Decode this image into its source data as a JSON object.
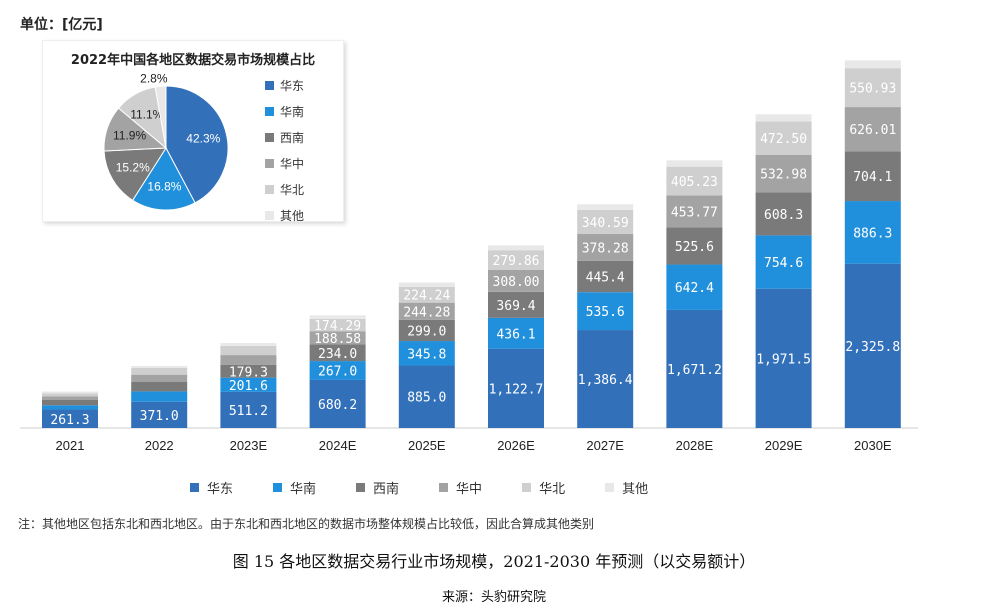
{
  "unit_label": "单位：[亿元]",
  "note": "注：其他地区包括东北和西北地区。由于东北和西北地区的数据市场整体规模占比较低，因此合算成其他类别",
  "caption": "图 15 各地区数据交易行业市场规模，2021-2030 年预测（以交易额计）",
  "source": "来源：头豹研究院",
  "colors": {
    "华东": "#3270ba",
    "华南": "#2190dc",
    "西南": "#7a7a7a",
    "华中": "#a3a3a3",
    "华北": "#cfcfcf",
    "其他": "#e8e8e8"
  },
  "chart_data": [
    {
      "type": "bar",
      "stacked": true,
      "categories": [
        "2021",
        "2022",
        "2023E",
        "2024E",
        "2025E",
        "2026E",
        "2027E",
        "2028E",
        "2029E",
        "2030E"
      ],
      "series": [
        {
          "name": "华东",
          "values": [
            261.3,
            371.0,
            511.2,
            680.2,
            885.0,
            1122.7,
            1386.4,
            1671.2,
            1971.5,
            2325.8
          ],
          "labels": [
            "261.3",
            "371.0",
            "511.2",
            "680.2",
            "885.0",
            "1,122.7",
            "1,386.4",
            "1,671.2",
            "1,971.5",
            "2,325.8"
          ]
        },
        {
          "name": "华南",
          "values": [
            60,
            147,
            201.6,
            267.0,
            345.8,
            436.1,
            535.6,
            642.4,
            754.6,
            886.3
          ],
          "labels": [
            "",
            "",
            "201.6",
            "267.0",
            "345.8",
            "436.1",
            "535.6",
            "642.4",
            "754.6",
            "886.3"
          ]
        },
        {
          "name": "西南",
          "values": [
            75,
            133,
            179.3,
            234.0,
            299.0,
            369.4,
            445.4,
            525.6,
            608.3,
            704.1
          ],
          "labels": [
            "",
            "",
            "179.3",
            "234.0",
            "299.0",
            "369.4",
            "445.4",
            "525.6",
            "608.3",
            "704.1"
          ]
        },
        {
          "name": "华中",
          "values": [
            50,
            104,
            140,
            188.58,
            244.28,
            308.0,
            378.28,
            453.77,
            532.98,
            626.01
          ],
          "labels": [
            "",
            "",
            "",
            "188.58",
            "244.28",
            "308.00",
            "378.28",
            "453.77",
            "532.98",
            "626.01"
          ]
        },
        {
          "name": "华北",
          "values": [
            45,
            97,
            130,
            174.29,
            224.24,
            279.86,
            340.59,
            405.23,
            472.5,
            550.93
          ],
          "labels": [
            "",
            "",
            "",
            "174.29",
            "224.24",
            "279.86",
            "340.59",
            "405.23",
            "472.50",
            "550.93"
          ]
        },
        {
          "name": "其他",
          "values": [
            25,
            25,
            40,
            50,
            60,
            70,
            80,
            90,
            100,
            110
          ],
          "labels": [
            "",
            "",
            "",
            "",
            "",
            "",
            "",
            "",
            "",
            ""
          ]
        }
      ],
      "legend_position": "bottom",
      "grid": false
    },
    {
      "type": "pie",
      "title": "2022年中国各地区数据交易市场规模占比",
      "categories": [
        "华东",
        "华南",
        "西南",
        "华中",
        "华北",
        "其他"
      ],
      "values": [
        42.3,
        16.8,
        15.2,
        11.9,
        11.1,
        2.8
      ],
      "labels": [
        "42.3%",
        "16.8%",
        "15.2%",
        "11.9%",
        "11.1%",
        "2.8%"
      ],
      "legend_position": "right"
    }
  ]
}
